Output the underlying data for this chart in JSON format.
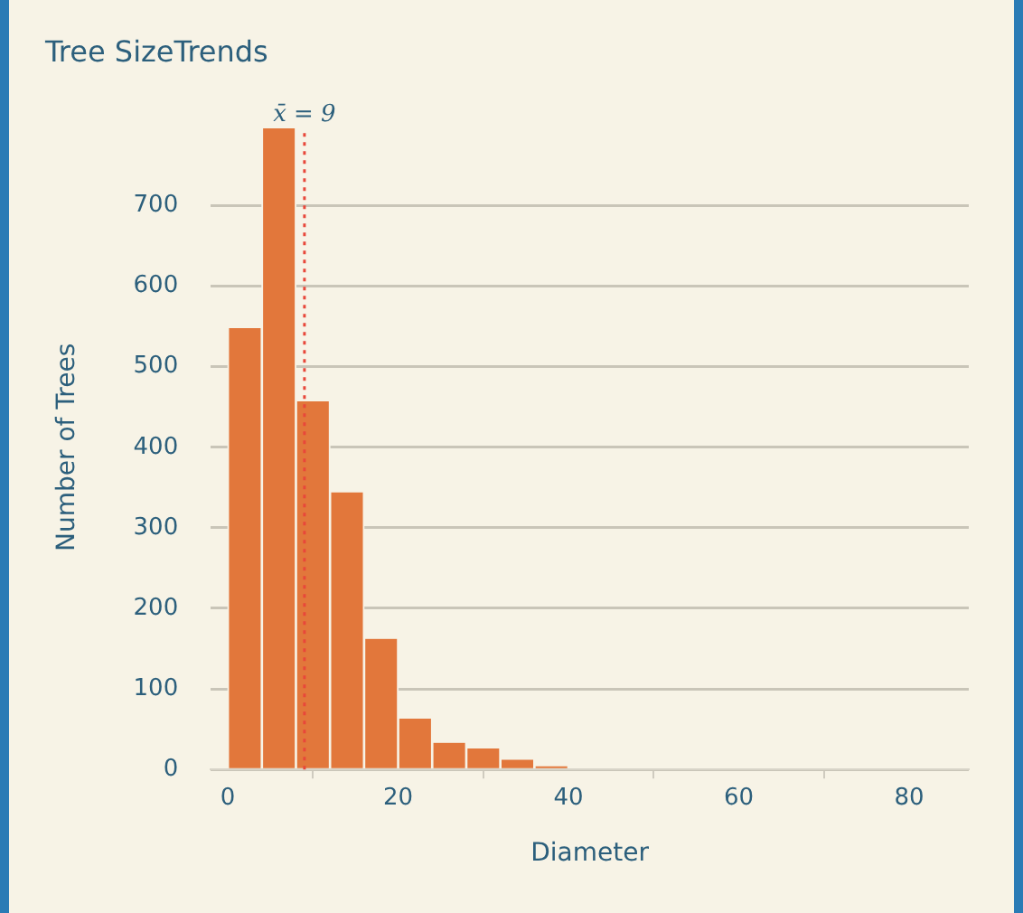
{
  "chart_data": {
    "type": "histogram",
    "title": "Tree SizeTrends",
    "xlabel": "Diameter",
    "ylabel": "Number of Trees",
    "bins": [
      0,
      4,
      8,
      12,
      16,
      20,
      24,
      28,
      32,
      36,
      40
    ],
    "values": [
      548,
      796,
      457,
      344,
      162,
      63,
      33,
      26,
      12,
      4
    ],
    "color": "#e2773b",
    "xlim": [
      -2,
      87
    ],
    "xticks": [
      0,
      20,
      40,
      60,
      80
    ],
    "ylim": [
      0,
      800
    ],
    "yticks": [
      0,
      100,
      200,
      300,
      400,
      500,
      600,
      700
    ],
    "grid": "y",
    "legend": false,
    "ref_lines": [
      {
        "axis": "x",
        "value": 9,
        "label": "x̄ = 9",
        "color": "#e8473a",
        "line_style": "dotted"
      }
    ]
  }
}
